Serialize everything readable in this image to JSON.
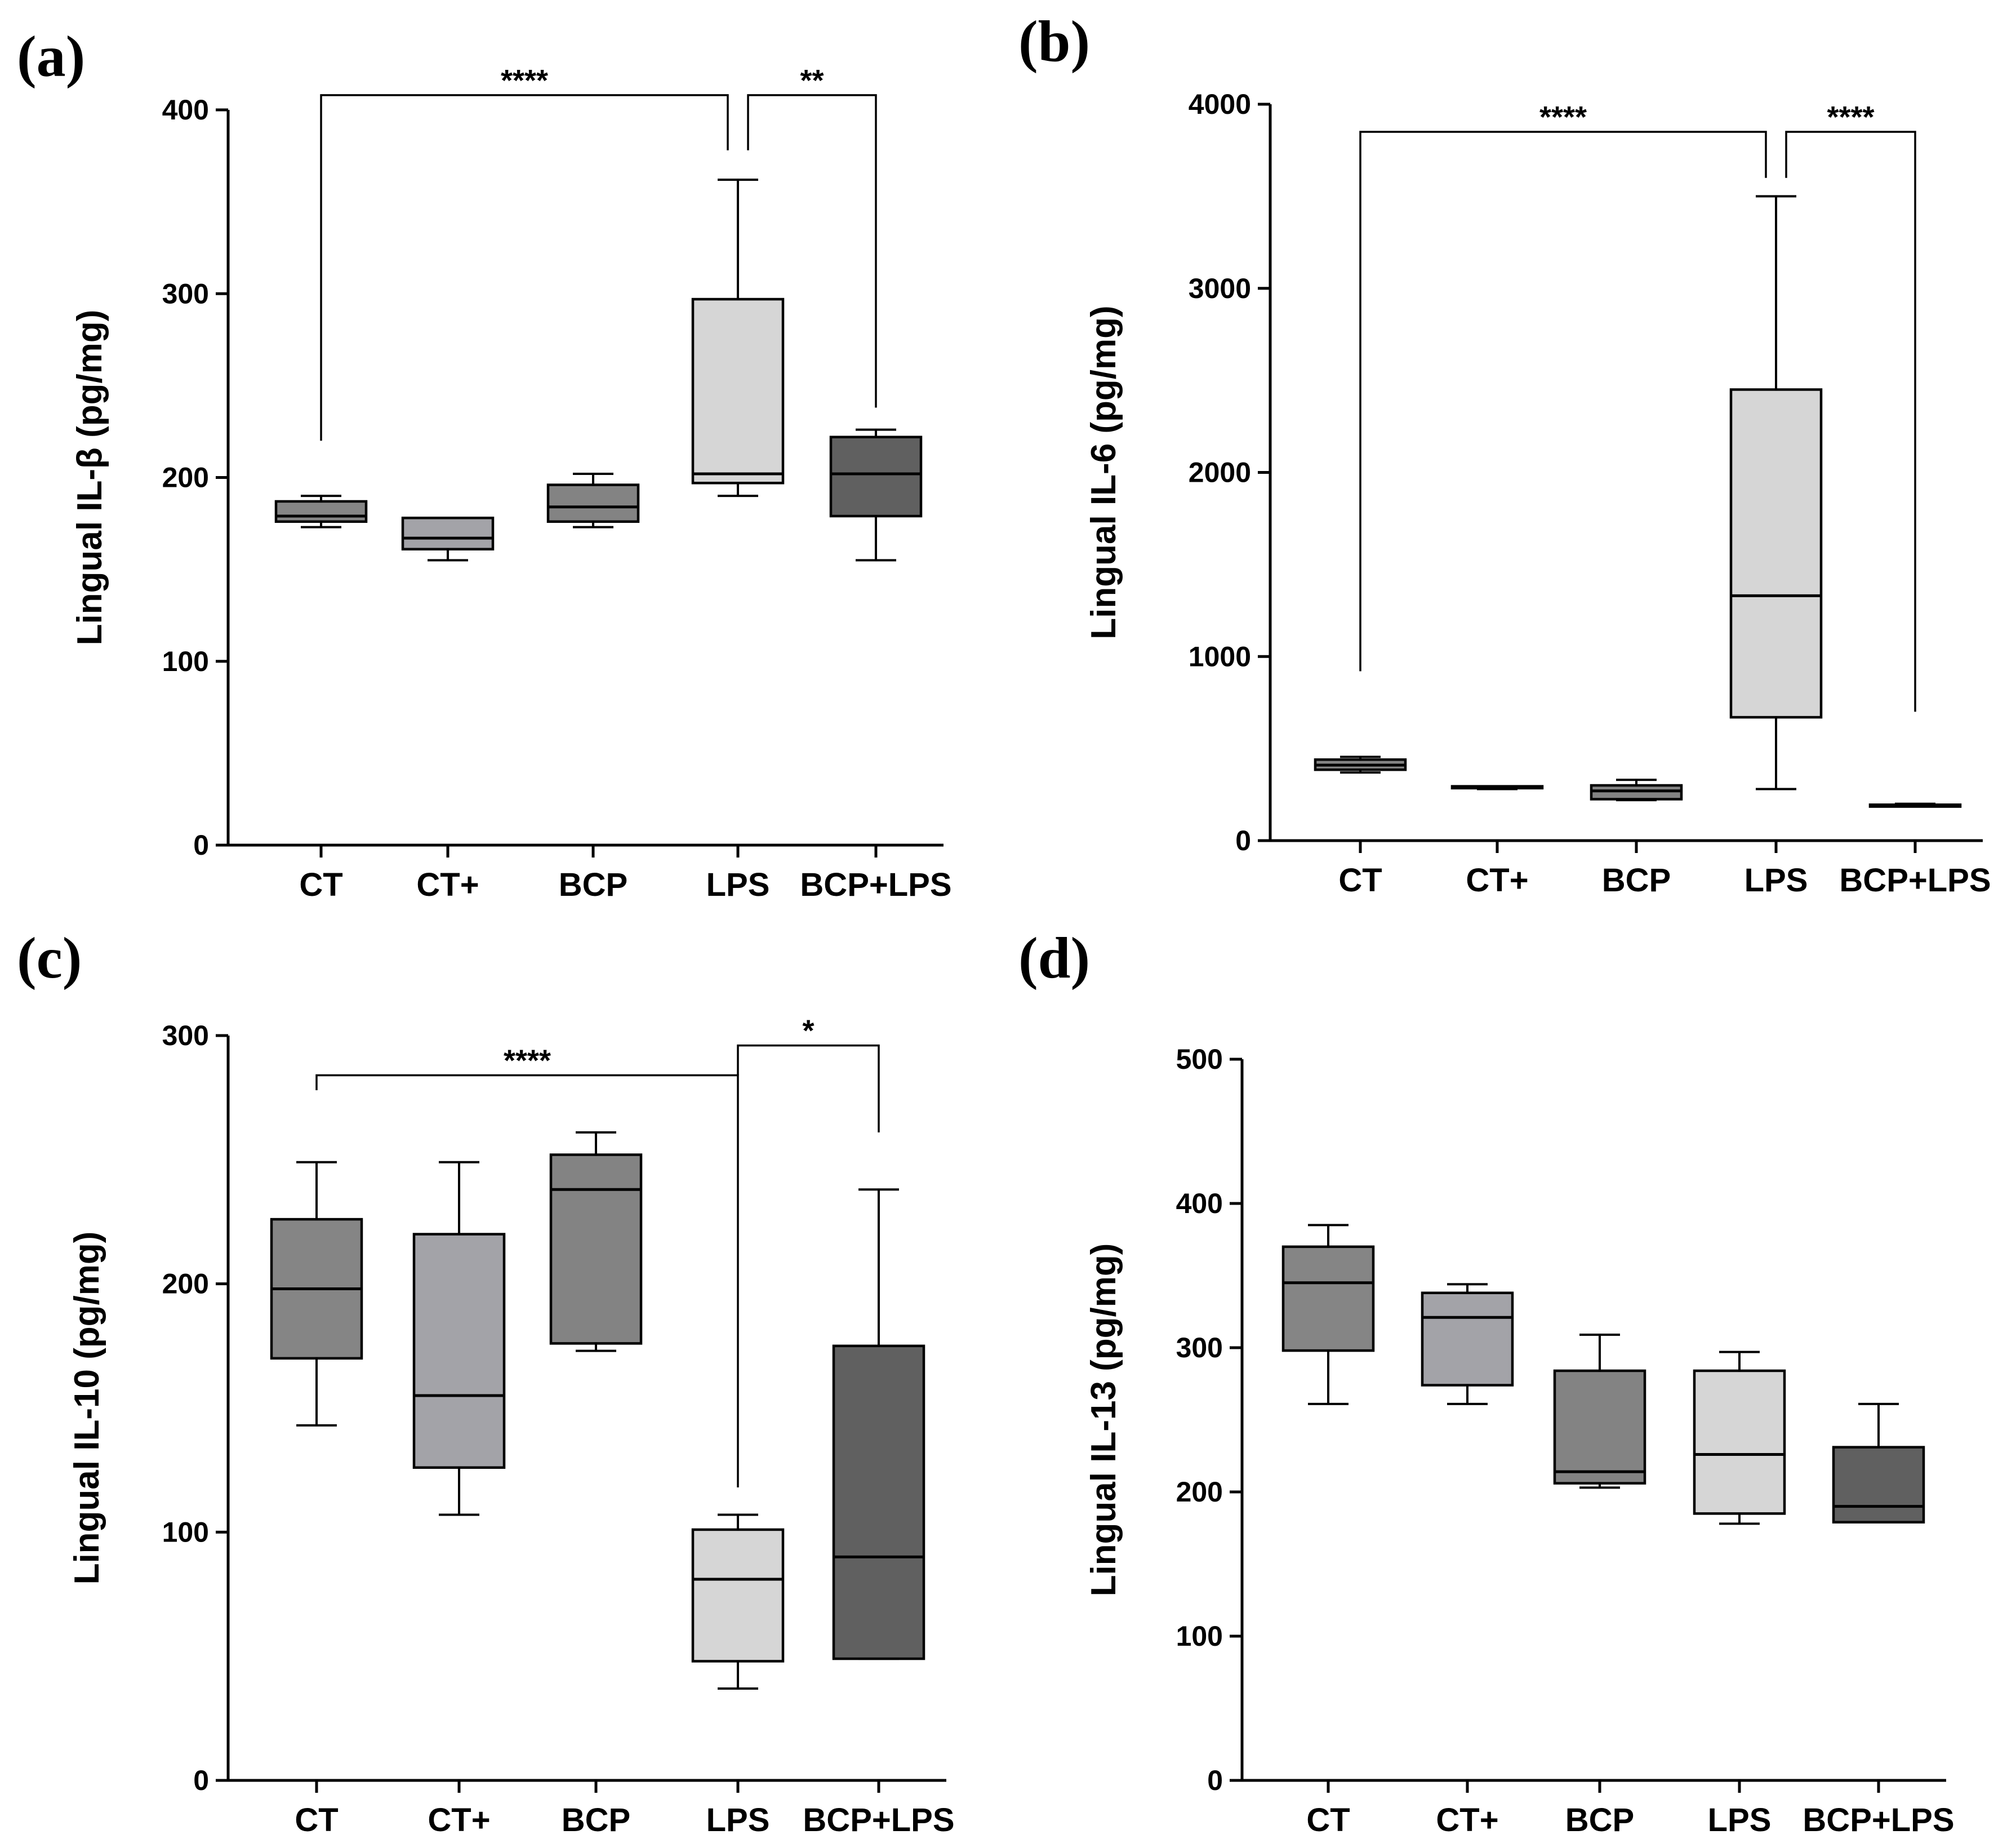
{
  "colors": {
    "CT": "#858585",
    "CT+": "#a3a3a8",
    "BCP": "#838383",
    "LPS": "#d6d6d6",
    "BCP+LPS": "#606060"
  },
  "chart_data": [
    {
      "panel": "(a)",
      "type": "box",
      "ylabel": "Lingual IL-β  (pg/mg)",
      "ylim": [
        0,
        400
      ],
      "yticks": [
        0,
        100,
        200,
        300,
        400
      ],
      "categories": [
        "CT",
        "CT+",
        "BCP",
        "LPS",
        "BCP+LPS"
      ],
      "boxes": [
        {
          "category": "CT",
          "min": 173,
          "q1": 176,
          "median": 179,
          "q3": 187,
          "max": 190
        },
        {
          "category": "CT+",
          "min": 155,
          "q1": 161,
          "median": 167,
          "q3": 178,
          "max": 178
        },
        {
          "category": "BCP",
          "min": 173,
          "q1": 176,
          "median": 184,
          "q3": 196,
          "max": 202
        },
        {
          "category": "LPS",
          "min": 190,
          "q1": 197,
          "median": 202,
          "q3": 297,
          "max": 362
        },
        {
          "category": "BCP+LPS",
          "min": 155,
          "q1": 179,
          "median": 202,
          "q3": 222,
          "max": 226
        }
      ],
      "significance": [
        {
          "from": "CT",
          "to": "LPS",
          "label": "****",
          "y": 408,
          "from_drop": 220,
          "to_drop": 378
        },
        {
          "from": "LPS",
          "to": "BCP+LPS",
          "label": "**",
          "y": 408,
          "from_drop": 378,
          "to_drop": 238
        }
      ]
    },
    {
      "panel": "(b)",
      "type": "box",
      "ylabel": "Lingual IL-6 (pg/mg)",
      "ylim": [
        0,
        4000
      ],
      "yticks": [
        0,
        1000,
        2000,
        3000,
        4000
      ],
      "categories": [
        "CT",
        "CT+",
        "BCP",
        "LPS",
        "BCP+LPS"
      ],
      "boxes": [
        {
          "category": "CT",
          "min": 370,
          "q1": 385,
          "median": 410,
          "q3": 440,
          "max": 455
        },
        {
          "category": "CT+",
          "min": 280,
          "q1": 285,
          "median": 290,
          "q3": 295,
          "max": 295
        },
        {
          "category": "BCP",
          "min": 220,
          "q1": 225,
          "median": 270,
          "q3": 300,
          "max": 330
        },
        {
          "category": "LPS",
          "min": 280,
          "q1": 670,
          "median": 1330,
          "q3": 2450,
          "max": 3500
        },
        {
          "category": "BCP+LPS",
          "min": 185,
          "q1": 185,
          "median": 190,
          "q3": 195,
          "max": 200
        }
      ],
      "significance": [
        {
          "from": "CT",
          "to": "LPS",
          "label": "****",
          "y": 3850,
          "from_drop": 920,
          "to_drop": 3600
        },
        {
          "from": "LPS",
          "to": "BCP+LPS",
          "label": "****",
          "y": 3850,
          "from_drop": 3600,
          "to_drop": 700
        }
      ]
    },
    {
      "panel": "(c)",
      "type": "box",
      "ylabel": "Lingual IL-10 (pg/mg)",
      "ylim": [
        0,
        300
      ],
      "yticks": [
        0,
        100,
        200,
        300
      ],
      "categories": [
        "CT",
        "CT+",
        "BCP",
        "LPS",
        "BCP+LPS"
      ],
      "boxes": [
        {
          "category": "CT",
          "min": 143,
          "q1": 170,
          "median": 198,
          "q3": 226,
          "max": 249
        },
        {
          "category": "CT+",
          "min": 107,
          "q1": 126,
          "median": 155,
          "q3": 220,
          "max": 249
        },
        {
          "category": "BCP",
          "min": 173,
          "q1": 176,
          "median": 238,
          "q3": 252,
          "max": 261
        },
        {
          "category": "LPS",
          "min": 37,
          "q1": 48,
          "median": 81,
          "q3": 101,
          "max": 107
        },
        {
          "category": "BCP+LPS",
          "min": 49,
          "q1": 49,
          "median": 90,
          "q3": 175,
          "max": 238
        }
      ],
      "significance": [
        {
          "from": "CT",
          "to": "LPS",
          "label": "****",
          "y": 284,
          "from_drop": 278,
          "to_drop": 118
        },
        {
          "from": "LPS",
          "to": "BCP+LPS",
          "label": "*",
          "y": 296,
          "from_drop": 284,
          "to_drop": 261
        }
      ]
    },
    {
      "panel": "(d)",
      "type": "box",
      "ylabel": "Lingual IL-13 (pg/mg)",
      "ylim": [
        0,
        500
      ],
      "yticks": [
        0,
        100,
        200,
        300,
        400,
        500
      ],
      "categories": [
        "CT",
        "CT+",
        "BCP",
        "LPS",
        "BCP+LPS"
      ],
      "boxes": [
        {
          "category": "CT",
          "min": 261,
          "q1": 298,
          "median": 345,
          "q3": 370,
          "max": 385
        },
        {
          "category": "CT+",
          "min": 261,
          "q1": 274,
          "median": 321,
          "q3": 338,
          "max": 344
        },
        {
          "category": "BCP",
          "min": 203,
          "q1": 206,
          "median": 214,
          "q3": 284,
          "max": 309
        },
        {
          "category": "LPS",
          "min": 178,
          "q1": 185,
          "median": 226,
          "q3": 284,
          "max": 297
        },
        {
          "category": "BCP+LPS",
          "min": 179,
          "q1": 179,
          "median": 190,
          "q3": 231,
          "max": 261
        }
      ],
      "significance": []
    }
  ]
}
